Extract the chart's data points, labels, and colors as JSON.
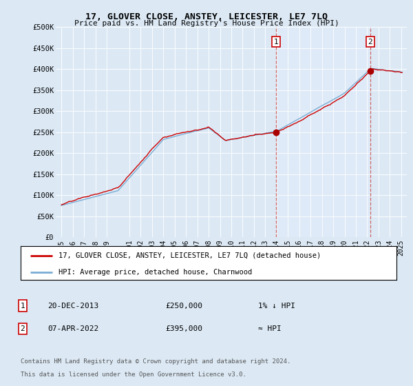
{
  "title": "17, GLOVER CLOSE, ANSTEY, LEICESTER, LE7 7LQ",
  "subtitle": "Price paid vs. HM Land Registry's House Price Index (HPI)",
  "background_color": "#dce9f5",
  "plot_bg_color": "#dce9f5",
  "highlight_color": "#deeaf7",
  "hpi_color": "#7aadd4",
  "price_color": "#cc0000",
  "marker_color": "#aa0000",
  "vline_color": "#cc6666",
  "annotation1": {
    "label": "1",
    "x_year": 2013.96,
    "price": 250000
  },
  "annotation2": {
    "label": "2",
    "x_year": 2022.27,
    "price": 395000
  },
  "legend_label1": "17, GLOVER CLOSE, ANSTEY, LEICESTER, LE7 7LQ (detached house)",
  "legend_label2": "HPI: Average price, detached house, Charnwood",
  "footer1": "Contains HM Land Registry data © Crown copyright and database right 2024.",
  "footer2": "This data is licensed under the Open Government Licence v3.0.",
  "table_row1": [
    "1",
    "20-DEC-2013",
    "£250,000",
    "1% ↓ HPI"
  ],
  "table_row2": [
    "2",
    "07-APR-2022",
    "£395,000",
    "≈ HPI"
  ],
  "ylim": [
    0,
    500000
  ],
  "xlim_start": 1994.5,
  "xlim_end": 2025.5,
  "yticks": [
    0,
    50000,
    100000,
    150000,
    200000,
    250000,
    300000,
    350000,
    400000,
    450000,
    500000
  ],
  "ytick_labels": [
    "£0",
    "£50K",
    "£100K",
    "£150K",
    "£200K",
    "£250K",
    "£300K",
    "£350K",
    "£400K",
    "£450K",
    "£500K"
  ],
  "xtick_years": [
    1995,
    1996,
    1997,
    1998,
    1999,
    2001,
    2002,
    2003,
    2004,
    2005,
    2006,
    2007,
    2008,
    2009,
    2010,
    2011,
    2012,
    2013,
    2014,
    2015,
    2016,
    2017,
    2018,
    2019,
    2020,
    2021,
    2022,
    2023,
    2024,
    2025
  ],
  "vline1_x": 2013.96,
  "vline2_x": 2022.27
}
